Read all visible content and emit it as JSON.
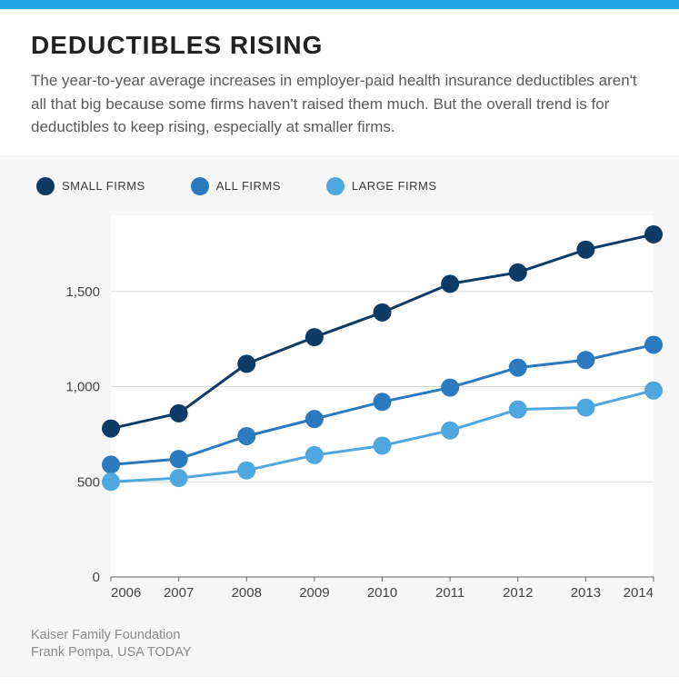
{
  "top_bar_color": "#1fa5e2",
  "header": {
    "title": "DEDUCTIBLES RISING",
    "subtitle": "The year-to-year average increases in employer-paid health insurance deductibles aren't all that big because some firms haven't raised them much. But the overall trend is for deductibles to keep rising, especially at smaller firms."
  },
  "chart": {
    "type": "line",
    "background_color": "#f7f7f7",
    "plot_background": "#ffffff",
    "grid_color": "#d8d8d8",
    "axis_color": "#666666",
    "axis_label_color": "#444444",
    "axis_fontsize": 15,
    "x": {
      "categories": [
        "2006",
        "2007",
        "2008",
        "2009",
        "2010",
        "2011",
        "2012",
        "2013",
        "2014"
      ]
    },
    "y": {
      "min": 0,
      "max": 1900,
      "ticks": [
        0,
        500,
        1000,
        1500
      ],
      "tick_labels": [
        "0",
        "500",
        "1,000",
        "1,500"
      ]
    },
    "line_width": 3,
    "marker_radius": 10,
    "series": [
      {
        "name": "SMALL FIRMS",
        "color": "#0d3b66",
        "values": [
          780,
          860,
          1120,
          1260,
          1390,
          1540,
          1600,
          1720,
          1800
        ]
      },
      {
        "name": "ALL FIRMS",
        "color": "#2b79bf",
        "values": [
          590,
          620,
          740,
          830,
          920,
          995,
          1100,
          1140,
          1220
        ]
      },
      {
        "name": "LARGE FIRMS",
        "color": "#4fa7e0",
        "values": [
          500,
          520,
          560,
          640,
          690,
          770,
          880,
          890,
          980
        ]
      }
    ],
    "legend": {
      "items": [
        {
          "label": "SMALL FIRMS",
          "color": "#0d3b66"
        },
        {
          "label": "ALL FIRMS",
          "color": "#2b79bf"
        },
        {
          "label": "LARGE FIRMS",
          "color": "#4fa7e0"
        }
      ]
    }
  },
  "footer": {
    "line1": "Kaiser Family Foundation",
    "line2": "Frank Pompa, USA TODAY"
  }
}
